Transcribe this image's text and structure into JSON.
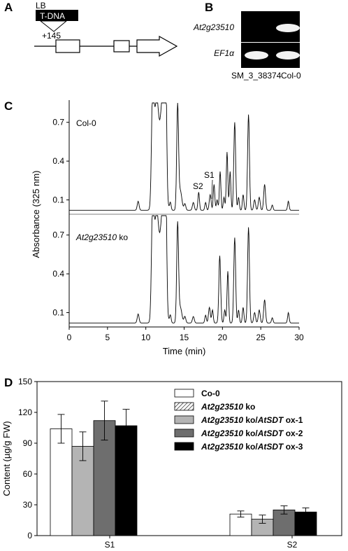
{
  "panel_labels": [
    "A",
    "B",
    "C",
    "D"
  ],
  "panel_a": {
    "lb": "LB",
    "tdna": "T-DNA",
    "position": "+145"
  },
  "panel_b": {
    "rows": [
      "At2g23510",
      "EF1α"
    ],
    "lanes": [
      "SM_3_38374",
      "Col-0"
    ],
    "band_present": [
      [
        false,
        true
      ],
      [
        true,
        true
      ]
    ]
  },
  "chart_data": [
    {
      "type": "line",
      "panel": "C",
      "xlabel": "Time (min)",
      "ylabel": "Absorbance (325 nm)",
      "xlim": [
        0,
        30
      ],
      "xticks": [
        "0",
        "5",
        "10",
        "15",
        "20",
        "25",
        "30"
      ],
      "ylim": [
        0.0,
        0.85
      ],
      "yticks": [
        "0.1",
        "0.4",
        "0.7"
      ],
      "peak_labels": [
        "S1",
        "S2"
      ],
      "series": [
        {
          "name": "Col-0",
          "baseline": 0.02,
          "peaks": [
            {
              "t": 9.0,
              "h": 0.07,
              "w": 0.12
            },
            {
              "t": 10.9,
              "h": 0.85,
              "w": 0.15
            },
            {
              "t": 11.4,
              "h": 0.85,
              "w": 0.3
            },
            {
              "t": 12.2,
              "h": 0.85,
              "w": 0.3
            },
            {
              "t": 12.6,
              "h": 0.85,
              "w": 0.12
            },
            {
              "t": 13.2,
              "h": 0.06,
              "w": 0.1
            },
            {
              "t": 14.15,
              "h": 0.8,
              "w": 0.12
            },
            {
              "t": 14.5,
              "h": 0.15,
              "w": 0.2
            },
            {
              "t": 15.1,
              "h": 0.05,
              "w": 0.12
            },
            {
              "t": 16.2,
              "h": 0.06,
              "w": 0.12
            },
            {
              "t": 16.9,
              "h": 0.14,
              "w": 0.1
            },
            {
              "t": 17.8,
              "h": 0.06,
              "w": 0.1
            },
            {
              "t": 18.4,
              "h": 0.12,
              "w": 0.12
            },
            {
              "t": 18.9,
              "h": 0.2,
              "w": 0.1
            },
            {
              "t": 19.3,
              "h": 0.08,
              "w": 0.1
            },
            {
              "t": 19.7,
              "h": 0.3,
              "w": 0.1
            },
            {
              "t": 20.2,
              "h": 0.1,
              "w": 0.1
            },
            {
              "t": 20.6,
              "h": 0.45,
              "w": 0.1
            },
            {
              "t": 21.0,
              "h": 0.3,
              "w": 0.1
            },
            {
              "t": 21.6,
              "h": 0.68,
              "w": 0.12
            },
            {
              "t": 22.1,
              "h": 0.1,
              "w": 0.1
            },
            {
              "t": 22.7,
              "h": 0.12,
              "w": 0.1
            },
            {
              "t": 23.4,
              "h": 0.74,
              "w": 0.12
            },
            {
              "t": 24.2,
              "h": 0.08,
              "w": 0.12
            },
            {
              "t": 24.8,
              "h": 0.1,
              "w": 0.12
            },
            {
              "t": 25.5,
              "h": 0.2,
              "w": 0.12
            },
            {
              "t": 26.5,
              "h": 0.04,
              "w": 0.1
            },
            {
              "t": 28.6,
              "h": 0.07,
              "w": 0.1
            }
          ]
        },
        {
          "name": "At2g23510 ko",
          "baseline": 0.02,
          "peaks": [
            {
              "t": 9.0,
              "h": 0.07,
              "w": 0.12
            },
            {
              "t": 10.9,
              "h": 0.85,
              "w": 0.15
            },
            {
              "t": 11.4,
              "h": 0.85,
              "w": 0.3
            },
            {
              "t": 12.2,
              "h": 0.85,
              "w": 0.3
            },
            {
              "t": 12.6,
              "h": 0.85,
              "w": 0.12
            },
            {
              "t": 13.2,
              "h": 0.06,
              "w": 0.1
            },
            {
              "t": 14.15,
              "h": 0.76,
              "w": 0.12
            },
            {
              "t": 14.5,
              "h": 0.12,
              "w": 0.2
            },
            {
              "t": 15.1,
              "h": 0.05,
              "w": 0.12
            },
            {
              "t": 16.2,
              "h": 0.05,
              "w": 0.12
            },
            {
              "t": 17.8,
              "h": 0.06,
              "w": 0.1
            },
            {
              "t": 18.3,
              "h": 0.12,
              "w": 0.12
            },
            {
              "t": 18.7,
              "h": 0.1,
              "w": 0.1
            },
            {
              "t": 19.65,
              "h": 0.52,
              "w": 0.12
            },
            {
              "t": 20.3,
              "h": 0.1,
              "w": 0.1
            },
            {
              "t": 20.7,
              "h": 0.4,
              "w": 0.1
            },
            {
              "t": 21.6,
              "h": 0.66,
              "w": 0.12
            },
            {
              "t": 22.1,
              "h": 0.1,
              "w": 0.1
            },
            {
              "t": 22.7,
              "h": 0.12,
              "w": 0.1
            },
            {
              "t": 23.4,
              "h": 0.74,
              "w": 0.12
            },
            {
              "t": 24.2,
              "h": 0.08,
              "w": 0.12
            },
            {
              "t": 24.8,
              "h": 0.1,
              "w": 0.12
            },
            {
              "t": 25.5,
              "h": 0.18,
              "w": 0.12
            },
            {
              "t": 26.5,
              "h": 0.04,
              "w": 0.1
            },
            {
              "t": 28.6,
              "h": 0.08,
              "w": 0.1
            }
          ]
        }
      ]
    },
    {
      "type": "bar",
      "panel": "D",
      "ylabel": "Content (µg/g FW)",
      "ylim": [
        0,
        150
      ],
      "yticks": [
        "0",
        "30",
        "60",
        "90",
        "120",
        "150"
      ],
      "categories": [
        "S1",
        "S2"
      ],
      "legend_position": "top-right",
      "series": [
        {
          "name": "Co-0",
          "values": [
            104,
            21
          ],
          "errors": [
            14,
            3
          ],
          "color": "#ffffff"
        },
        {
          "name": "At2g23510 ko",
          "values": [
            0,
            0
          ],
          "errors": [
            0,
            0
          ],
          "color": "hatched"
        },
        {
          "name": "At2g23510 ko/AtSDT ox-1",
          "values": [
            87,
            16
          ],
          "errors": [
            14,
            4
          ],
          "color": "#b4b4b4"
        },
        {
          "name": "At2g23510 ko/AtSDT ox-2",
          "values": [
            112,
            25
          ],
          "errors": [
            19,
            4
          ],
          "color": "#6e6e6e"
        },
        {
          "name": "At2g23510 ko/AtSDT ox-3",
          "values": [
            107,
            23
          ],
          "errors": [
            16,
            4
          ],
          "color": "#000000"
        }
      ]
    }
  ]
}
